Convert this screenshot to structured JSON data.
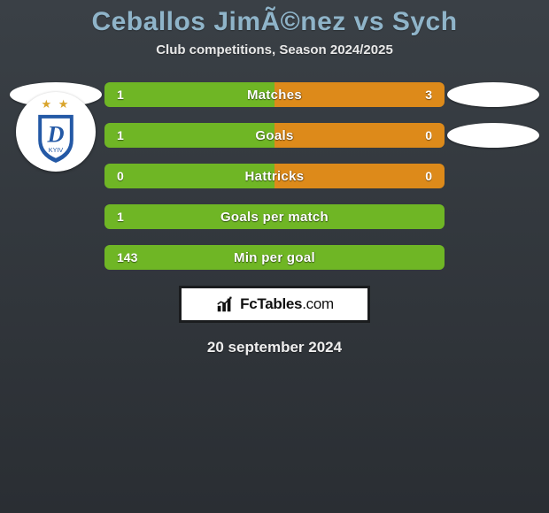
{
  "title": "Ceballos JimÃ©nez vs Sych",
  "subtitle": "Club competitions, Season 2024/2025",
  "date": "20 september 2024",
  "branding": {
    "name": "FcTables",
    "suffix": ".com"
  },
  "styling": {
    "bg_gradient_top": "#3a4046",
    "bg_gradient_bottom": "#2a2e33",
    "title_color": "#8fb4c9",
    "bar_track": "#3b3f43",
    "left_fill": "#6fb625",
    "right_fill": "#dd8a1a",
    "oval_bg": "#ffffff",
    "text_color": "#ffffff"
  },
  "badges": {
    "left": {
      "name": "dynamo-kyiv",
      "stars": "★ ★",
      "star_color": "#d9a42b",
      "shield_blue": "#2459a6",
      "shield_white": "#ffffff",
      "letter": "D",
      "subtext": "KYIV"
    }
  },
  "rows": [
    {
      "label": "Matches",
      "left_val": "1",
      "right_val": "3",
      "left_pct": 100,
      "right_pct": 100,
      "show_left_oval": true,
      "show_right_oval": true,
      "show_left_badge": false
    },
    {
      "label": "Goals",
      "left_val": "1",
      "right_val": "0",
      "left_pct": 100,
      "right_pct": 100,
      "show_left_oval": false,
      "show_right_oval": true,
      "show_left_badge": true
    },
    {
      "label": "Hattricks",
      "left_val": "0",
      "right_val": "0",
      "left_pct": 100,
      "right_pct": 100,
      "show_left_oval": false,
      "show_right_oval": false,
      "show_left_badge": false
    },
    {
      "label": "Goals per match",
      "left_val": "1",
      "right_val": "",
      "left_pct": 100,
      "right_pct": 0,
      "show_left_oval": false,
      "show_right_oval": false,
      "show_left_badge": false
    },
    {
      "label": "Min per goal",
      "left_val": "143",
      "right_val": "",
      "left_pct": 100,
      "right_pct": 0,
      "show_left_oval": false,
      "show_right_oval": false,
      "show_left_badge": false
    }
  ]
}
